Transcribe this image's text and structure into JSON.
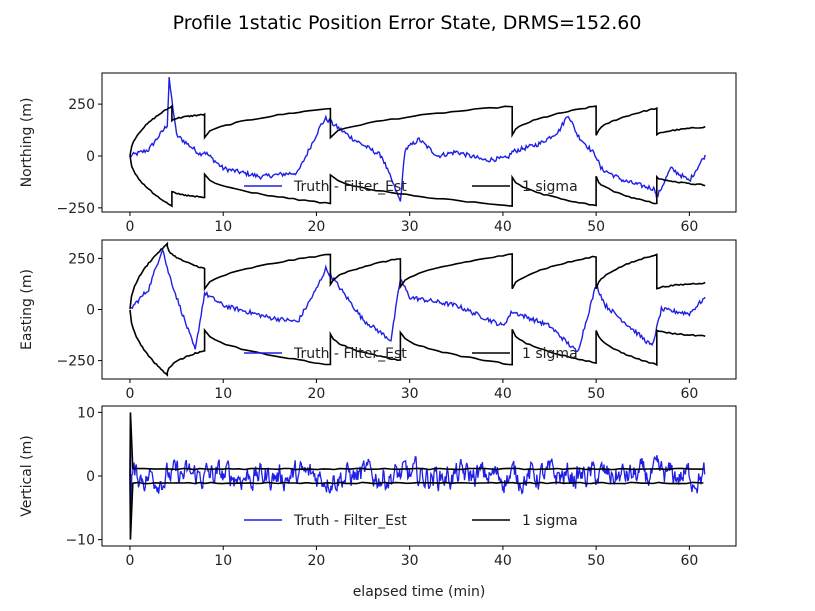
{
  "chart_data": [
    {
      "type": "line",
      "ylabel": "Northing (m)",
      "xlim": [
        -3,
        65
      ],
      "ylim": [
        -270,
        400
      ],
      "xticks": [
        0,
        10,
        20,
        30,
        40,
        50,
        60
      ],
      "yticks": [
        -250,
        0,
        250
      ],
      "x": [
        0,
        2,
        4,
        4.2,
        5,
        7.5,
        8,
        10,
        14,
        18,
        20.5,
        21,
        24,
        27,
        29,
        29.5,
        31,
        33,
        35,
        38,
        40.5,
        41,
        44,
        46,
        47,
        48,
        50,
        50.5,
        53,
        56.3,
        56.5,
        58,
        60,
        61.7
      ],
      "series": [
        {
          "name": "Truth - Filter_Est",
          "color": "#1f1fe6",
          "values": [
            0,
            30,
            150,
            370,
            100,
            10,
            20,
            -60,
            -100,
            -80,
            150,
            180,
            80,
            0,
            -220,
            30,
            80,
            0,
            20,
            -20,
            -10,
            20,
            60,
            120,
            200,
            100,
            0,
            -60,
            -120,
            -160,
            -200,
            -60,
            -120,
            5
          ]
        },
        {
          "name": "1 sigma",
          "color": "#000000",
          "shape": "sawtooth",
          "segments": [
            {
              "t0": 0,
              "t1": 4.5,
              "v0": 0,
              "v1": 240
            },
            {
              "t0": 4.5,
              "t1": 8,
              "v0": 170,
              "v1": 200
            },
            {
              "t0": 8,
              "t1": 21.5,
              "v0": 90,
              "v1": 230
            },
            {
              "t0": 21.5,
              "t1": 41,
              "v0": 90,
              "v1": 240
            },
            {
              "t0": 41,
              "t1": 50,
              "v0": 100,
              "v1": 240
            },
            {
              "t0": 50,
              "t1": 56.5,
              "v0": 100,
              "v1": 230
            },
            {
              "t0": 56.5,
              "t1": 61.7,
              "v0": 100,
              "v1": 140
            }
          ]
        }
      ],
      "legend": {
        "placement": "lower-center",
        "entries": [
          "Truth - Filter_Est",
          "1 sigma"
        ]
      }
    },
    {
      "type": "line",
      "ylabel": "Easting (m)",
      "xlim": [
        -3,
        65
      ],
      "ylim": [
        -340,
        340
      ],
      "xticks": [
        0,
        10,
        20,
        30,
        40,
        50,
        60
      ],
      "yticks": [
        -250,
        0,
        250
      ],
      "x": [
        0,
        2,
        3.5,
        4,
        5,
        7,
        8,
        10,
        15,
        18,
        20,
        21,
        25,
        28,
        29,
        30,
        35,
        40,
        41,
        45,
        48,
        50,
        51,
        53,
        56,
        57,
        60,
        61.7
      ],
      "series": [
        {
          "name": "Truth - Filter_Est",
          "color": "#1f1fe6",
          "values": [
            0,
            100,
            300,
            200,
            60,
            -200,
            80,
            20,
            -40,
            -60,
            100,
            200,
            -50,
            -150,
            150,
            60,
            20,
            -80,
            -10,
            -80,
            -210,
            120,
            20,
            -60,
            -180,
            0,
            -20,
            60
          ]
        },
        {
          "name": "1 sigma",
          "color": "#000000",
          "shape": "sawtooth",
          "segments": [
            {
              "t0": 0,
              "t1": 4,
              "v0": 0,
              "v1": 320
            },
            {
              "t0": 4,
              "t1": 8,
              "v0": 310,
              "v1": 200
            },
            {
              "t0": 8,
              "t1": 21.5,
              "v0": 100,
              "v1": 270
            },
            {
              "t0": 21.5,
              "t1": 29,
              "v0": 120,
              "v1": 250
            },
            {
              "t0": 29,
              "t1": 41,
              "v0": 110,
              "v1": 270
            },
            {
              "t0": 41,
              "t1": 50,
              "v0": 100,
              "v1": 260
            },
            {
              "t0": 50,
              "t1": 56.5,
              "v0": 100,
              "v1": 270
            },
            {
              "t0": 56.5,
              "t1": 61.7,
              "v0": 100,
              "v1": 130
            }
          ]
        }
      ],
      "legend": {
        "placement": "lower-center",
        "entries": [
          "Truth - Filter_Est",
          "1 sigma"
        ]
      }
    },
    {
      "type": "line",
      "ylabel": "Vertical (m)",
      "xlabel": "elapsed time (min)",
      "xlim": [
        -3,
        65
      ],
      "ylim": [
        -11,
        11
      ],
      "xticks": [
        0,
        10,
        20,
        30,
        40,
        50,
        60
      ],
      "yticks": [
        -10,
        0,
        10
      ],
      "series": [
        {
          "name": "Truth - Filter_Est",
          "color": "#1f1fe6",
          "shape": "noise",
          "mean": 0,
          "amplitude": 2.2,
          "initial_spike": [
            -10,
            10
          ]
        },
        {
          "name": "1 sigma",
          "color": "#000000",
          "shape": "band",
          "level": 1.1,
          "initial_spike": [
            -10,
            10
          ]
        }
      ],
      "legend": {
        "placement": "lower-center",
        "entries": [
          "Truth - Filter_Est",
          "1 sigma"
        ]
      }
    }
  ],
  "figure": {
    "title": "Profile 1static  Position Error State, DRMS=152.60"
  },
  "legend": {
    "truth_label": "Truth - Filter_Est",
    "sigma_label": "1 sigma"
  }
}
